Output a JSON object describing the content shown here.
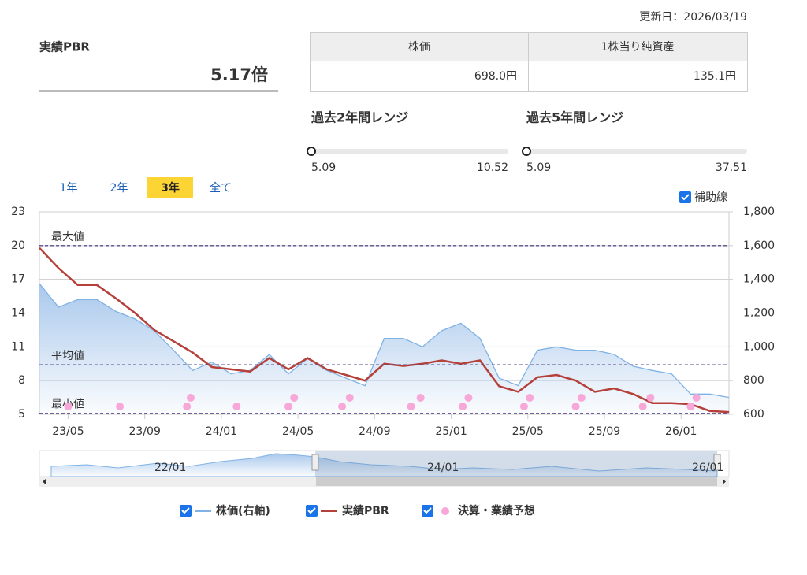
{
  "update_date": "更新日：2026/03/19",
  "pbr": {
    "label": "実績PBR",
    "value": "5.17倍"
  },
  "table": {
    "headers": [
      "株価",
      "1株当り純資産"
    ],
    "values": [
      "698.0円",
      "135.1円"
    ]
  },
  "ranges": [
    {
      "title": "過去2年間レンジ",
      "min": 5.09,
      "max": 10.52
    },
    {
      "title": "過去5年間レンジ",
      "min": 5.09,
      "max": 37.51
    }
  ],
  "tabs": [
    "1年",
    "2年",
    "3年",
    "全て"
  ],
  "active_tab": 2,
  "guide_checkbox": "補助線",
  "chart_data": {
    "type": "line",
    "x": [
      0,
      1,
      2,
      3,
      4,
      5,
      6,
      7,
      8,
      9,
      10,
      11,
      12,
      13,
      14,
      15,
      16,
      17,
      18,
      19,
      20,
      21,
      22,
      23,
      24,
      25,
      26,
      27,
      28,
      29,
      30,
      31,
      32,
      33,
      34,
      35,
      36
    ],
    "xlim": [
      0,
      36
    ],
    "xticks": [
      {
        "value": 1.5,
        "label": "23/05"
      },
      {
        "value": 5.5,
        "label": "23/09"
      },
      {
        "value": 9.5,
        "label": "24/01"
      },
      {
        "value": 13.5,
        "label": "24/05"
      },
      {
        "value": 17.5,
        "label": "24/09"
      },
      {
        "value": 21.5,
        "label": "25/01"
      },
      {
        "value": 25.5,
        "label": "25/05"
      },
      {
        "value": 29.5,
        "label": "25/09"
      },
      {
        "value": 33.5,
        "label": "26/01"
      }
    ],
    "ylim": [
      5,
      23
    ],
    "yticks": [
      5,
      8,
      11,
      14,
      17,
      20,
      23
    ],
    "y2lim": [
      600,
      1800
    ],
    "y2ticks": [
      600,
      800,
      {
        "value": 1000,
        "label": "1,000"
      },
      {
        "value": 1200,
        "label": "1,200"
      },
      {
        "value": 1400,
        "label": "1,400"
      },
      {
        "value": 1600,
        "label": "1,600"
      },
      {
        "value": 1800,
        "label": "1,800"
      }
    ],
    "grid": true,
    "series": [
      {
        "name": "株価(右軸)",
        "color": "#7fb2e5",
        "axis": "y2",
        "values": [
          1375,
          1235,
          1280,
          1280,
          1210,
          1165,
          1095,
          980,
          860,
          910,
          840,
          860,
          955,
          840,
          930,
          860,
          815,
          770,
          1050,
          1050,
          1000,
          1095,
          1140,
          1050,
          815,
          770,
          980,
          1000,
          980,
          980,
          955,
          885,
          860,
          840,
          720,
          720,
          700
        ]
      },
      {
        "name": "実績PBR",
        "color": "#b5403a",
        "values": [
          19.8,
          18.0,
          16.5,
          16.5,
          15.3,
          14.0,
          12.5,
          11.5,
          10.5,
          9.2,
          9.0,
          8.8,
          10.0,
          9.0,
          10.0,
          9.0,
          8.5,
          8.0,
          9.5,
          9.3,
          9.5,
          9.8,
          9.5,
          9.8,
          7.5,
          7.0,
          8.3,
          8.5,
          8.0,
          7.0,
          7.3,
          6.8,
          6.0,
          6.0,
          5.9,
          5.3,
          5.2
        ]
      }
    ],
    "events": {
      "name": "決算・業績予想",
      "color": "#f7a8d8",
      "x": [
        1.5,
        4.2,
        7.7,
        7.9,
        10.3,
        13.0,
        13.3,
        15.8,
        16.2,
        19.4,
        19.9,
        22.1,
        22.4,
        25.3,
        25.6,
        28.0,
        28.3,
        31.5,
        31.9,
        34.0,
        34.3
      ]
    },
    "reference_lines": [
      {
        "label": "最大値",
        "value": 20
      },
      {
        "label": "平均値",
        "value": 9.4
      },
      {
        "label": "最小値",
        "value": 5.09
      }
    ]
  },
  "navigator": {
    "labels": [
      "22/01",
      "24/01",
      "26/01"
    ]
  }
}
